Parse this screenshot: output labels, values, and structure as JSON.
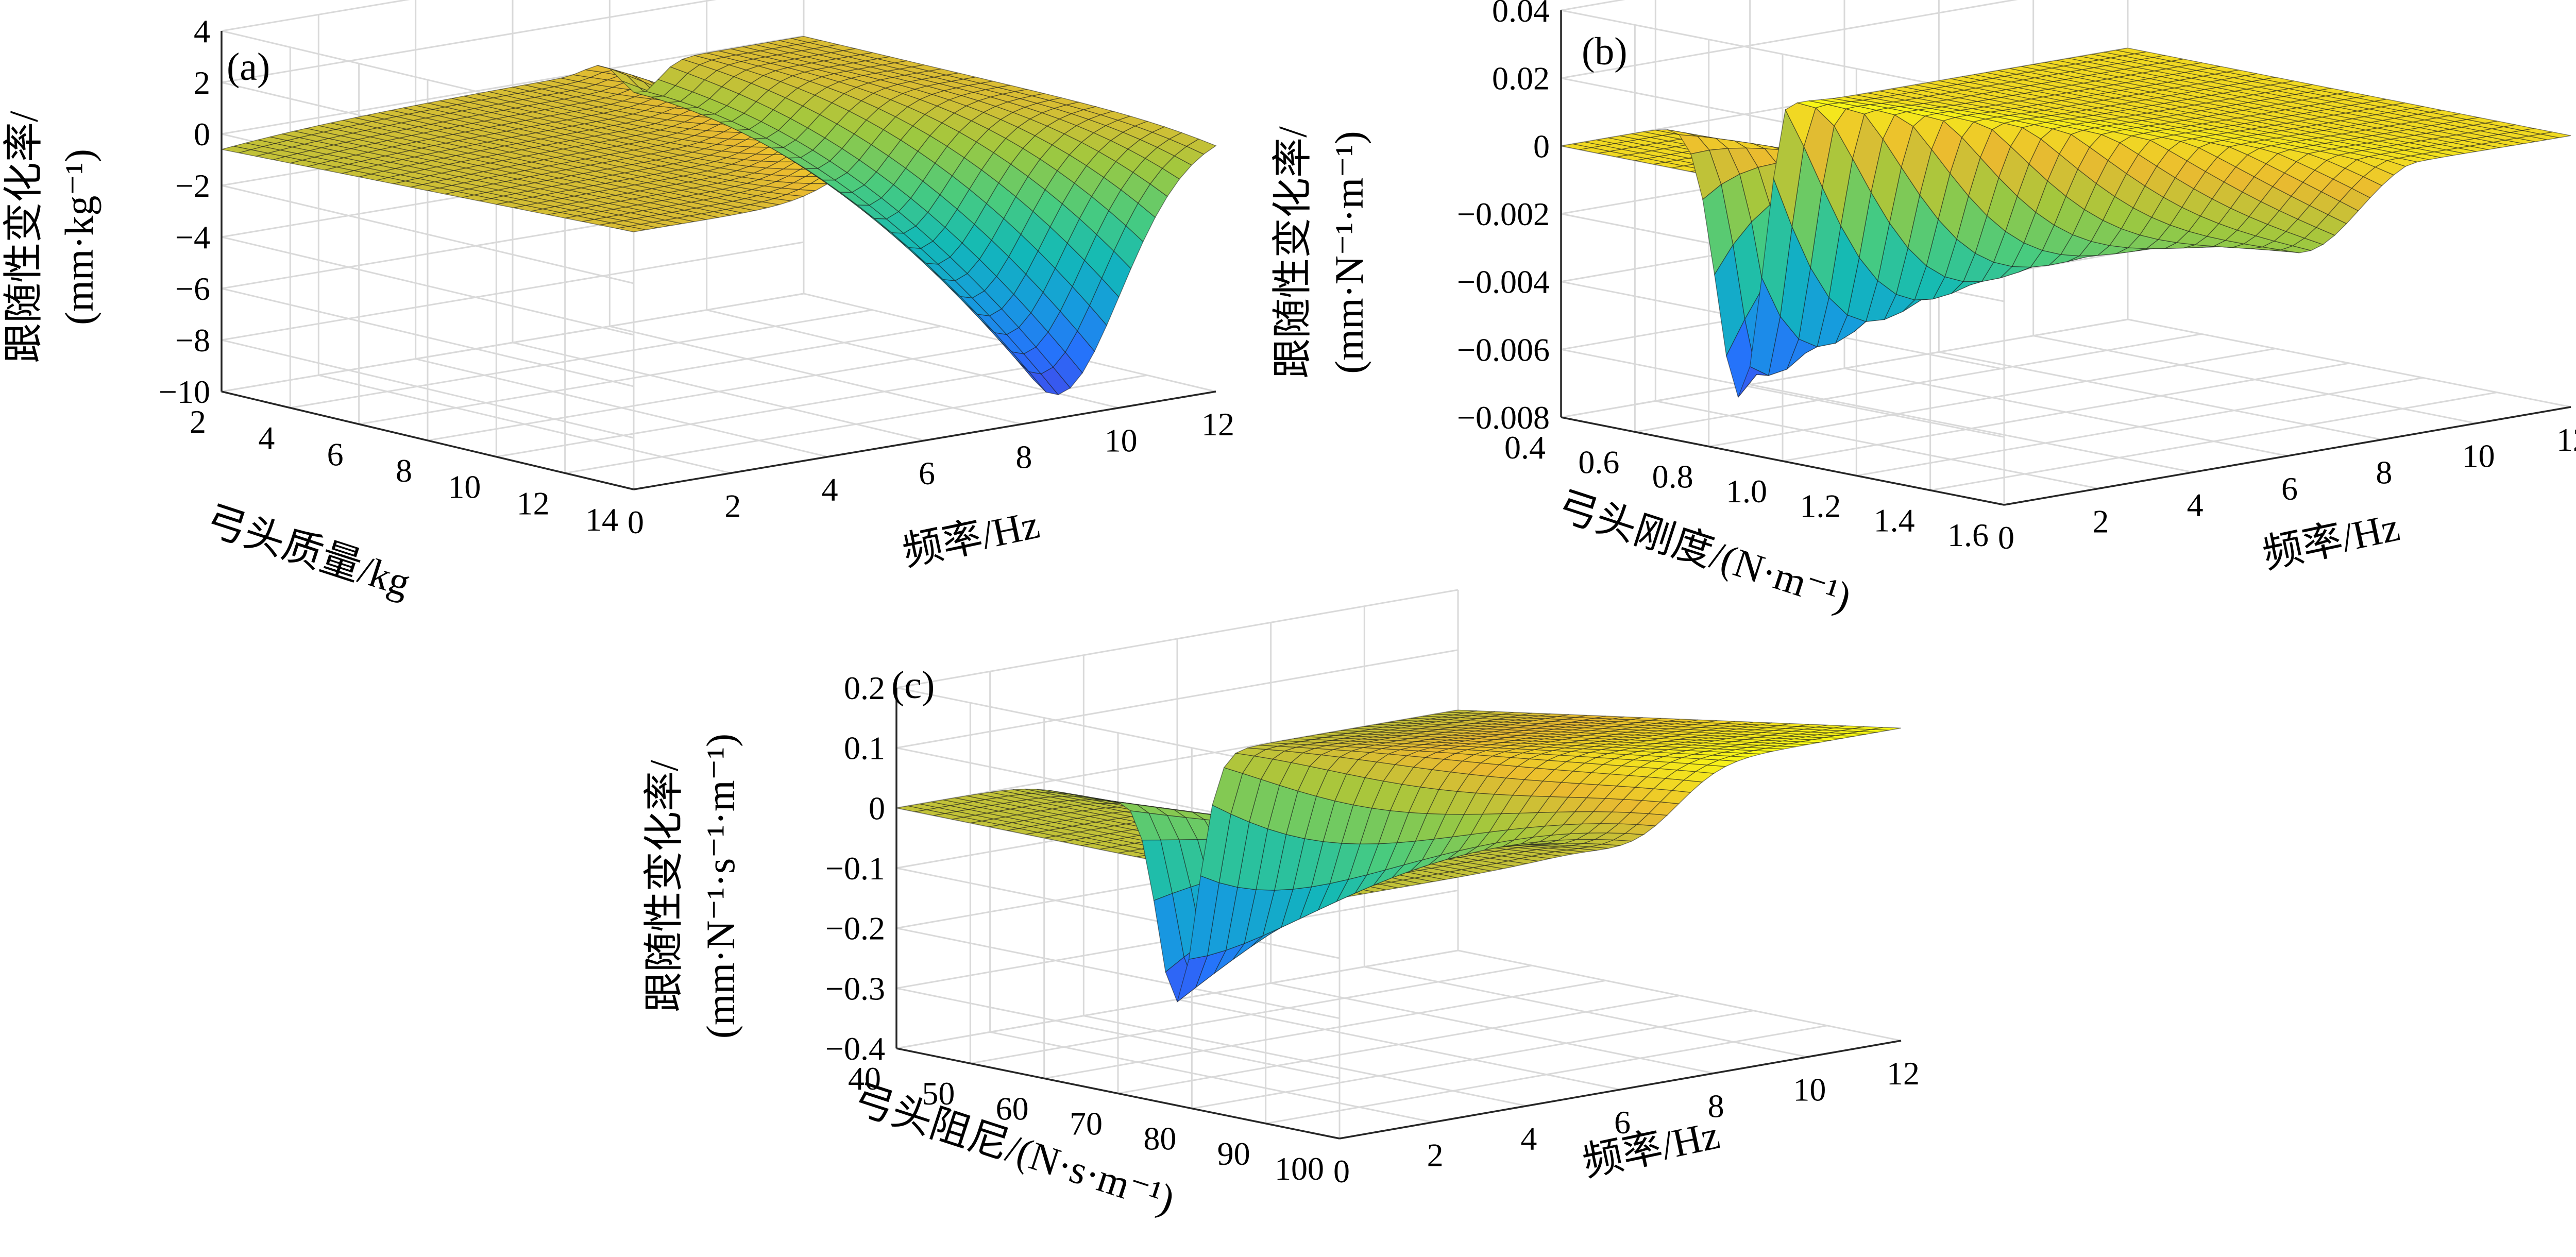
{
  "chart_data": [
    {
      "type": "surface",
      "panel_label": "(a)",
      "zlabel_line1": "跟随性变化率/",
      "zlabel_line2": "(mm·kg⁻¹)",
      "ylabel": "弓头质量/kg",
      "xlabel": "频率/Hz",
      "xlim": [
        0,
        12
      ],
      "ylim": [
        2,
        14
      ],
      "zlim": [
        -10,
        4
      ],
      "xticks": [
        "0",
        "2",
        "4",
        "6",
        "8",
        "10",
        "12"
      ],
      "yticks": [
        "2",
        "4",
        "6",
        "8",
        "10",
        "12",
        "14"
      ],
      "zticks": [
        "-10",
        "-8",
        "-6",
        "-4",
        "-2",
        "0",
        "2",
        "4"
      ],
      "grid": true,
      "colormap": "parula",
      "surface_model": {
        "description_values": "approximate peak/trough read from figure",
        "peak_value": 2.8,
        "peak_at_hz": 8.3,
        "peak_at_y": 14,
        "trough_value": -9.5,
        "trough_at_hz": 9.0,
        "trough_at_y": 14,
        "baseline": 0
      }
    },
    {
      "type": "surface",
      "panel_label": "(b)",
      "zlabel_line1": "跟随性变化率/",
      "zlabel_line2": "(mm·N⁻¹·m⁻¹)",
      "ylabel": "弓头刚度/(N·m⁻¹)",
      "xlabel": "频率/Hz",
      "xlim": [
        0,
        12
      ],
      "ylim": [
        0.4,
        1.6
      ],
      "zlim": [
        -0.008,
        0.04
      ],
      "xticks": [
        "0",
        "2",
        "4",
        "6",
        "8",
        "10",
        "12"
      ],
      "yticks": [
        "0.4",
        "0.6",
        "0.8",
        "1.0",
        "1.2",
        "1.4",
        "1.6"
      ],
      "zticks": [
        "-0.008",
        "-0.006",
        "-0.004",
        "-0.002",
        "0",
        "0.02",
        "0.04"
      ],
      "grid": true,
      "colormap": "parula",
      "surface_model": {
        "trough_value": -0.0078,
        "trough_at_hz": 4.2,
        "trough_at_y": 0.4,
        "peak_value": 0.0005,
        "peak_at_hz": 6.0,
        "baseline": 0
      }
    },
    {
      "type": "surface",
      "panel_label": "(c)",
      "zlabel_line1": "跟随性变化率/",
      "zlabel_line2": "(mm·N⁻¹·s⁻¹·m⁻¹)",
      "ylabel": "弓头阻尼/(N·s·m⁻¹)",
      "xlabel": "频率/Hz",
      "xlim": [
        0,
        12
      ],
      "ylim": [
        40,
        100
      ],
      "zlim": [
        -0.4,
        0.2
      ],
      "xticks": [
        "0",
        "2",
        "4",
        "6",
        "8",
        "10",
        "12"
      ],
      "yticks": [
        "40",
        "50",
        "60",
        "70",
        "80",
        "90",
        "100"
      ],
      "zticks": [
        "-0.4",
        "-0.3",
        "-0.2",
        "-0.1",
        "0",
        "0.1",
        "0.2"
      ],
      "grid": true,
      "colormap": "parula",
      "surface_model": {
        "trough_value": -0.37,
        "trough_at_hz": 6.8,
        "trough_at_y": 40,
        "peak_value": 0.12,
        "peak_at_hz": 7.5,
        "peak_at_y": 100,
        "baseline": 0
      }
    }
  ]
}
